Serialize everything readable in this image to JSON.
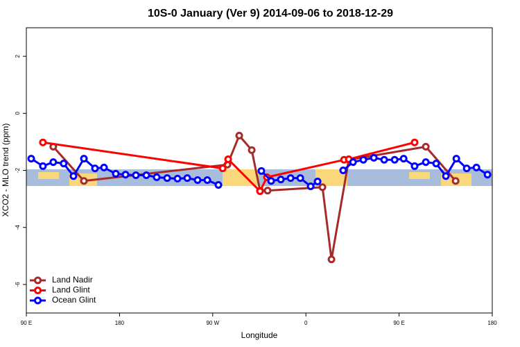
{
  "chart_data": {
    "type": "line",
    "title": "10S-0 January (Ver 9)   2014-09-06 to 2018-12-29",
    "x_label": "Longitude",
    "y_label": "XCO2 - MLO trend (ppm)",
    "xlim": [
      90,
      540
    ],
    "ylim": [
      -7,
      3
    ],
    "xticks": [
      {
        "value": 90,
        "label": "90 E"
      },
      180,
      {
        "value": 270,
        "label": "90 W"
      },
      {
        "value": 360,
        "label": "0"
      },
      {
        "value": 450,
        "label": "90 E"
      },
      {
        "value": 540,
        "label": "180"
      }
    ],
    "yticks": [
      -6,
      -4,
      -2,
      0,
      2
    ],
    "legend": "bottom-left",
    "series": [
      {
        "name": "Land Nadir",
        "color": "#a52a2a",
        "x": [
          116,
          145.6,
          284.2,
          295.6,
          307.7,
          315.7,
          323,
          376,
          384.7,
          401.4,
          475.8,
          504.6
        ],
        "values": [
          -1.17,
          -2.37,
          -1.8,
          -0.78,
          -1.29,
          -2.71,
          -2.71,
          -2.59,
          -5.12,
          -1.63,
          -1.17,
          -2.37
        ],
        "breaks": null
      },
      {
        "name": "Land Glint",
        "color": "#ff0000",
        "x": [
          106,
          279.6,
          284.9,
          315.7,
          322.4,
          396.8,
          401.4,
          465
        ],
        "values": [
          -1.02,
          -1.93,
          -1.61,
          -2.73,
          -2.24,
          -1.63,
          -1.61,
          -1.02
        ]
      },
      {
        "name": "Ocean Glint",
        "color": "#0000ff",
        "x": [
          94.7,
          106,
          116,
          126,
          135.5,
          145.6,
          156.3,
          165,
          176.4,
          185.8,
          195.8,
          205.9,
          215.9,
          226,
          236,
          245.4,
          255.4,
          264.8,
          275.5,
          296,
          317,
          326.4,
          335.8,
          345.2,
          354.6,
          364.6,
          371.3,
          384,
          396,
          405.5,
          415.5,
          425.6,
          435.6,
          445.7,
          454.4,
          465,
          475.8,
          485.8,
          495.2,
          505.3,
          515.3,
          524.7,
          535.4
        ],
        "values": [
          -1.59,
          -1.85,
          -1.71,
          -1.76,
          -2.2,
          -1.59,
          -1.93,
          -1.9,
          -2.12,
          -2.15,
          -2.17,
          -2.17,
          -2.24,
          -2.27,
          -2.29,
          -2.27,
          -2.34,
          -2.34,
          -2.51,
          null,
          -2.02,
          -2.37,
          -2.32,
          -2.27,
          -2.27,
          -2.56,
          -2.39,
          null,
          -2.0,
          -1.71,
          -1.63,
          -1.56,
          -1.63,
          -1.63,
          -1.59,
          -1.85,
          -1.71,
          -1.76,
          -2.2,
          -1.59,
          -1.93,
          -1.9,
          -2.15
        ]
      }
    ]
  }
}
